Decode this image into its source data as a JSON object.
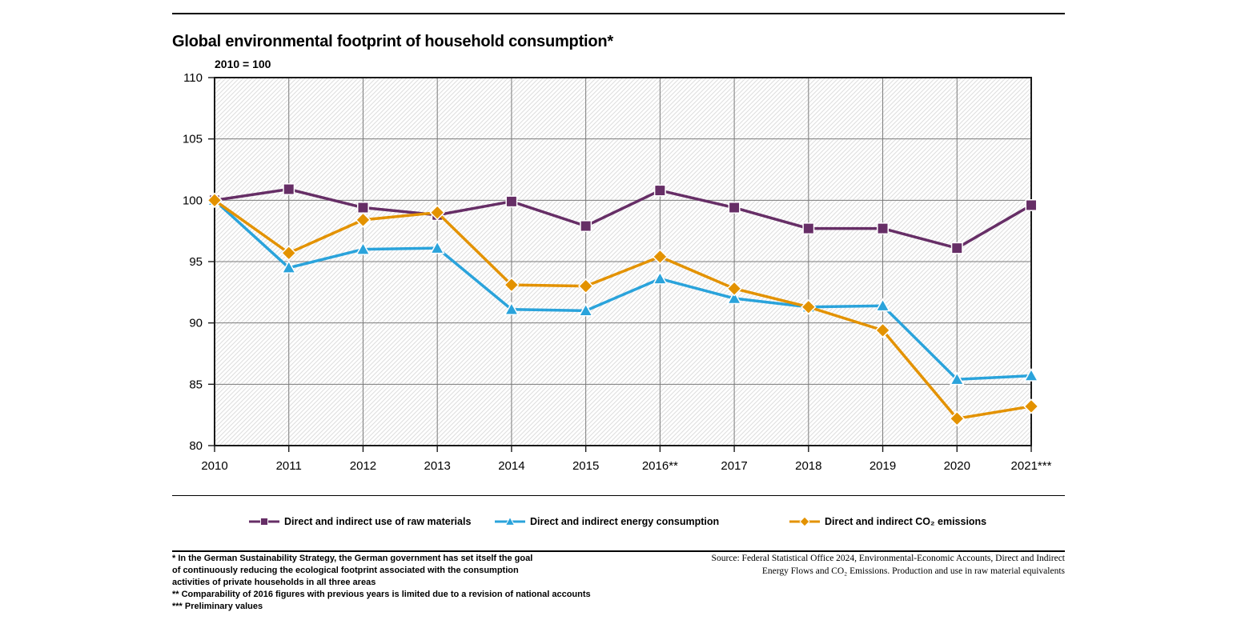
{
  "header": {
    "title": "Global environmental footprint of household consumption*",
    "unit_note": "2010 = 100"
  },
  "chart_data": {
    "type": "line",
    "categories": [
      "2010",
      "2011",
      "2012",
      "2013",
      "2014",
      "2015",
      "2016**",
      "2017",
      "2018",
      "2019",
      "2020",
      "2021***"
    ],
    "series": [
      {
        "id": "raw-materials",
        "name": "Direct and indirect use of raw materials",
        "marker": "square",
        "color": "#662e66",
        "values": [
          100,
          100.9,
          99.4,
          98.8,
          99.9,
          97.9,
          100.8,
          99.4,
          97.7,
          97.7,
          96.1,
          99.6
        ]
      },
      {
        "id": "energy-consumption",
        "name": "Direct and indirect energy consumption",
        "marker": "triangle",
        "color": "#2aa3db",
        "values": [
          100,
          94.5,
          96.0,
          96.1,
          91.1,
          91.0,
          93.6,
          92.0,
          91.3,
          91.4,
          85.4,
          85.7
        ]
      },
      {
        "id": "co2-emissions",
        "name": "Direct and indirect CO₂ emissions",
        "marker": "diamond",
        "color": "#e39200",
        "values": [
          100,
          95.7,
          98.4,
          99.0,
          93.1,
          93.0,
          95.4,
          92.8,
          91.3,
          89.4,
          82.2,
          83.2
        ]
      }
    ],
    "ylim": [
      80,
      110
    ],
    "ytick_step": 5,
    "grid": true,
    "grid_color": "#7a7a7a",
    "hatch_color": "#dedede",
    "border_color": "#1a1a1a",
    "legend_position": "bottom",
    "title": "Global environmental footprint of household consumption*",
    "xlabel": "",
    "ylabel": "2010 = 100"
  },
  "footnotes": {
    "lines": [
      "* In the German Sustainability Strategy, the German government has set itself the goal",
      "of continuously reducing the ecological footprint associated with the consumption",
      "activities of private households in all three areas",
      "** Comparability of 2016 figures with previous years is limited due to a revision of national accounts",
      "*** Preliminary values"
    ]
  },
  "source": {
    "lines": [
      "Source: Federal Statistical Office 2024, Environmental-Economic Accounts, Direct and Indirect",
      "Energy Flows and CO₂ Emissions. Production and use in raw material equivalents"
    ]
  }
}
